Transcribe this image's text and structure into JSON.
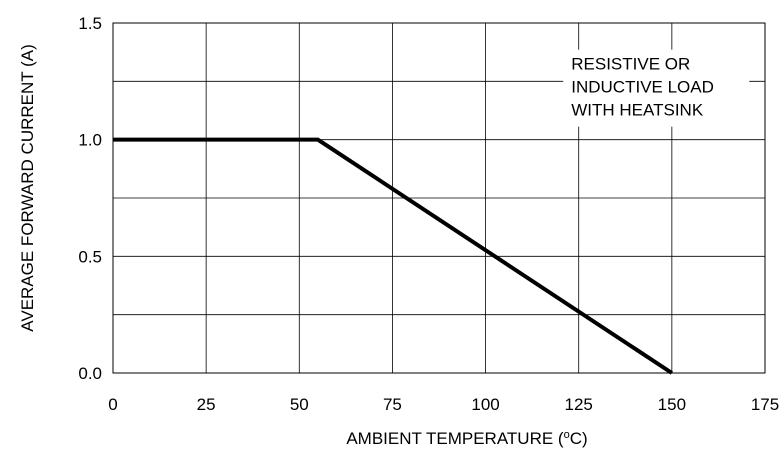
{
  "chart_data": {
    "type": "line",
    "title": "",
    "xlabel": "AMBIENT TEMPERATURE",
    "xlabel_unit_open": " (",
    "xlabel_unit_degree": "o",
    "xlabel_unit_close": "C)",
    "ylabel": "AVERAGE FORWARD CURRENT (A)",
    "xlim": [
      0,
      175
    ],
    "ylim": [
      0,
      1.5
    ],
    "x_ticks": [
      0,
      25,
      50,
      75,
      100,
      125,
      150,
      175
    ],
    "x_tick_labels": [
      "0",
      "25",
      "50",
      "75",
      "100",
      "125",
      "150",
      "175"
    ],
    "y_ticks": [
      0.0,
      0.5,
      1.0,
      1.5
    ],
    "y_tick_labels": [
      "0.0",
      "0.5",
      "1.0",
      "1.5"
    ],
    "x_grid": [
      0,
      25,
      50,
      75,
      100,
      125,
      150,
      175
    ],
    "y_grid": [
      0,
      0.25,
      0.5,
      0.75,
      1.0,
      1.25,
      1.5
    ],
    "grid": true,
    "series": [
      {
        "x": [
          0,
          55,
          150
        ],
        "y": [
          1.0,
          1.0,
          0.0
        ],
        "color": "#000000"
      }
    ],
    "annotation": {
      "lines": [
        "RESISTIVE OR",
        "INDUCTIVE LOAD",
        "WITH HEATSINK"
      ],
      "anchor_x": 123,
      "anchor_y": 1.3
    }
  }
}
